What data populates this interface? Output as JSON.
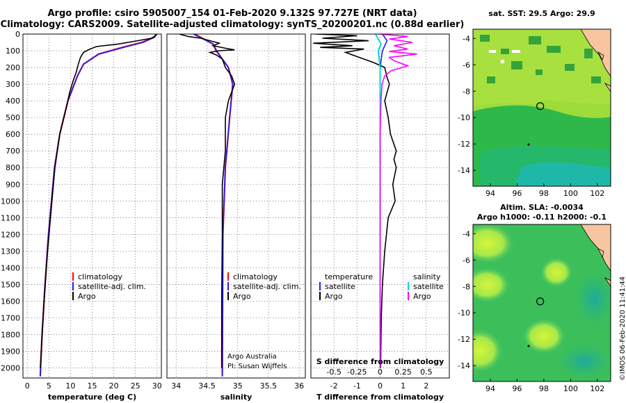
{
  "title_line1": "Argo profile: csiro 5905007_154 01-Feb-2020 9.132S 97.727E (NRT data)",
  "title_line2": "Climatology: CARS2009. Satellite-adjusted climatology: synTS_20200201.nc (0.88d earlier)",
  "colors": {
    "climatology": "#ff0000",
    "satellite": "#1a1aff",
    "argo": "#000000",
    "sat_salinity": "#00d8d8",
    "argo_salinity": "#ff00ff"
  },
  "chart_data": [
    {
      "type": "line",
      "name": "temperature-profile",
      "xlabel": "temperature (deg C)",
      "ylabel": "",
      "xlim": [
        -1,
        31
      ],
      "ylim": [
        2060,
        0
      ],
      "xticks": [
        "0",
        "5",
        "10",
        "15",
        "20",
        "25",
        "30"
      ],
      "yticks": [
        "0",
        "100",
        "200",
        "300",
        "400",
        "500",
        "600",
        "700",
        "800",
        "900",
        "1000",
        "1100",
        "1200",
        "1300",
        "1400",
        "1500",
        "1600",
        "1700",
        "1800",
        "1900",
        "2000"
      ],
      "legend": [
        "climatology",
        "satellite-adj. clim.",
        "Argo"
      ],
      "series": [
        {
          "name": "climatology",
          "depth": [
            0,
            20,
            50,
            80,
            120,
            180,
            250,
            400,
            600,
            800,
            1000,
            1200,
            1500,
            1800,
            2050
          ],
          "values": [
            29.8,
            29.3,
            26.5,
            22.0,
            16.5,
            13.0,
            11.6,
            9.4,
            7.5,
            6.3,
            5.6,
            4.9,
            4.1,
            3.4,
            3.0
          ]
        },
        {
          "name": "satellite-adj. clim.",
          "depth": [
            0,
            20,
            50,
            80,
            120,
            180,
            250,
            400,
            600,
            800,
            1000,
            1200,
            1500,
            1800,
            2050
          ],
          "values": [
            29.9,
            29.4,
            26.8,
            22.3,
            16.6,
            13.0,
            11.6,
            9.4,
            7.5,
            6.3,
            5.6,
            4.9,
            4.1,
            3.4,
            3.0
          ]
        },
        {
          "name": "Argo",
          "depth": [
            0,
            10,
            25,
            40,
            60,
            75,
            90,
            110,
            140,
            180,
            230,
            280,
            350,
            450,
            600,
            800,
            1000,
            1300,
            1600,
            2000
          ],
          "values": [
            29.9,
            29.7,
            28.7,
            25.5,
            21.0,
            16.0,
            14.5,
            13.0,
            12.3,
            11.8,
            11.3,
            10.6,
            9.8,
            8.9,
            7.5,
            6.4,
            5.7,
            4.7,
            3.9,
            3.0
          ]
        }
      ]
    },
    {
      "type": "line",
      "name": "salinity-profile",
      "xlabel": "salinity",
      "xlim": [
        33.85,
        36.1
      ],
      "ylim": [
        2060,
        0
      ],
      "xticks": [
        "34",
        "34.5",
        "35",
        "35.5",
        "36"
      ],
      "legend": [
        "climatology",
        "satellite-adj. clim.",
        "Argo"
      ],
      "series": [
        {
          "name": "climatology",
          "depth": [
            0,
            30,
            60,
            100,
            150,
            200,
            300,
            500,
            800,
            1200,
            2050
          ],
          "values": [
            34.3,
            34.45,
            34.6,
            34.65,
            34.75,
            34.85,
            34.92,
            34.87,
            34.8,
            34.76,
            34.75
          ]
        },
        {
          "name": "satellite-adj. clim.",
          "depth": [
            0,
            30,
            60,
            100,
            150,
            200,
            300,
            500,
            800,
            1200,
            2050
          ],
          "values": [
            34.28,
            34.44,
            34.6,
            34.66,
            34.75,
            34.85,
            34.92,
            34.87,
            34.8,
            34.76,
            34.75
          ]
        },
        {
          "name": "Argo",
          "depth": [
            0,
            15,
            25,
            40,
            55,
            70,
            85,
            95,
            100,
            110,
            125,
            150,
            200,
            250,
            300,
            400,
            500,
            700,
            900,
            1200,
            1600,
            2000
          ],
          "values": [
            34.05,
            34.2,
            34.4,
            34.55,
            34.7,
            34.6,
            34.8,
            34.95,
            34.7,
            34.55,
            34.65,
            34.75,
            34.8,
            34.9,
            34.95,
            34.85,
            34.8,
            34.8,
            34.75,
            34.75,
            34.74,
            34.74
          ]
        }
      ]
    },
    {
      "type": "line",
      "name": "difference-profile",
      "xlabel": "T difference from climatology",
      "xlabel2": "S difference from climatology",
      "xlim": [
        -3,
        3
      ],
      "ylim": [
        2060,
        0
      ],
      "xticks": [
        "-2",
        "-1",
        "0",
        "1",
        "2"
      ],
      "xticks2": [
        "-0.5",
        "-0.25",
        "0",
        "0.25",
        "0.5"
      ],
      "legend_temperature_title": "temperature",
      "legend_salinity_title": "salinity",
      "legend_temperature": [
        "satellite",
        "Argo"
      ],
      "legend_salinity": [
        "satellite",
        "Argo"
      ],
      "series": [
        {
          "name": "T satellite",
          "depth": [
            0,
            40,
            100,
            200,
            400,
            800,
            1200,
            2000
          ],
          "values": [
            0.1,
            0.3,
            0.1,
            0.0,
            0.0,
            0.0,
            0.0,
            0.0
          ]
        },
        {
          "name": "T Argo",
          "depth": [
            0,
            10,
            25,
            40,
            55,
            70,
            80,
            90,
            110,
            140,
            170,
            200,
            260,
            300,
            400,
            500,
            600,
            700,
            750,
            800,
            900,
            1000,
            1100,
            1300,
            1500,
            1700,
            2000
          ],
          "values": [
            -2.8,
            -1.0,
            -2.5,
            -0.5,
            -2.9,
            -1.2,
            -2.6,
            -0.7,
            -1.5,
            -0.9,
            -0.3,
            0.2,
            0.3,
            0.4,
            0.2,
            0.35,
            0.45,
            0.7,
            0.6,
            0.7,
            0.55,
            0.65,
            0.35,
            0.2,
            0.1,
            0.05,
            0.02
          ]
        },
        {
          "name": "S satellite",
          "depth": [
            0,
            30,
            60,
            100,
            200,
            400,
            800,
            1200,
            2000
          ],
          "values": [
            -0.05,
            -0.02,
            0.01,
            -0.02,
            0.0,
            0.0,
            0.0,
            0.0,
            0.0
          ]
        },
        {
          "name": "S Argo",
          "depth": [
            0,
            15,
            30,
            50,
            70,
            90,
            105,
            120,
            140,
            160,
            190,
            220,
            250,
            300,
            400,
            600,
            900,
            1200,
            1600,
            2000
          ],
          "values": [
            -0.02,
            0.3,
            0.1,
            0.35,
            0.15,
            0.3,
            0.1,
            0.4,
            0.1,
            0.15,
            0.3,
            0.12,
            0.05,
            0.02,
            0.01,
            0.0,
            0.0,
            0.0,
            0.0,
            0.0
          ]
        }
      ]
    },
    {
      "type": "heatmap",
      "name": "sst-map",
      "title": "sat. SST: 29.5 Argo: 29.9",
      "xlim": [
        92.7,
        103
      ],
      "ylim": [
        -15.2,
        -3.3
      ],
      "xticks": [
        "94",
        "96",
        "98",
        "100",
        "102"
      ],
      "yticks": [
        "-4",
        "-6",
        "-8",
        "-10",
        "-12",
        "-14"
      ],
      "float_position": [
        97.727,
        -9.132
      ]
    },
    {
      "type": "heatmap",
      "name": "sla-map",
      "title": "Altim. SLA: -0.0034",
      "subtitle": "Argo h1000: -0.11 h2000: -0.1",
      "xlim": [
        92.7,
        103
      ],
      "ylim": [
        -15.2,
        -3.3
      ],
      "xticks": [
        "94",
        "96",
        "98",
        "100",
        "102"
      ],
      "yticks": [
        "-4",
        "-6",
        "-8",
        "-10",
        "-12",
        "-14"
      ],
      "float_position": [
        97.727,
        -9.132
      ]
    }
  ],
  "footer_pi_line1": "Argo Australia",
  "footer_pi_line2": "PI: Susan Wijffels",
  "stamp": "©IMOS 06-Feb-2020 11:41:44"
}
